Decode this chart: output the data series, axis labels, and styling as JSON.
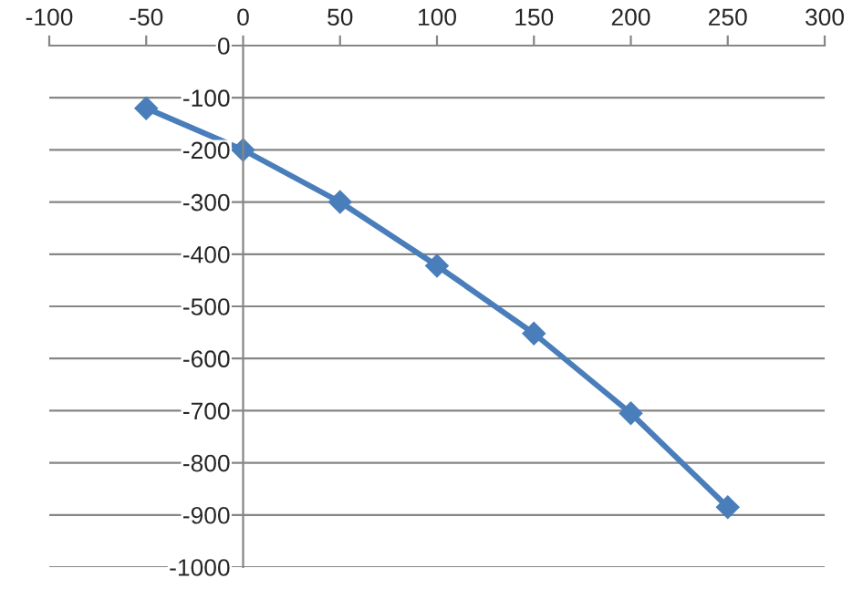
{
  "chart_data": {
    "type": "line",
    "x": [
      -50,
      0,
      50,
      100,
      150,
      200,
      250
    ],
    "series": [
      {
        "color": "#4a7ebb",
        "values": [
          -120,
          -200,
          -300,
          -422,
          -552,
          -705,
          -885
        ]
      }
    ],
    "xlim": [
      -100,
      300
    ],
    "xticks": [
      -100,
      -50,
      0,
      50,
      100,
      150,
      200,
      250,
      300
    ],
    "ylim": [
      -1000,
      0
    ],
    "yticks": [
      -1000,
      -900,
      -800,
      -700,
      -600,
      -500,
      -400,
      -300,
      -200,
      -100,
      0
    ],
    "grid": "y",
    "marker": "diamond",
    "line_style": "solid"
  }
}
